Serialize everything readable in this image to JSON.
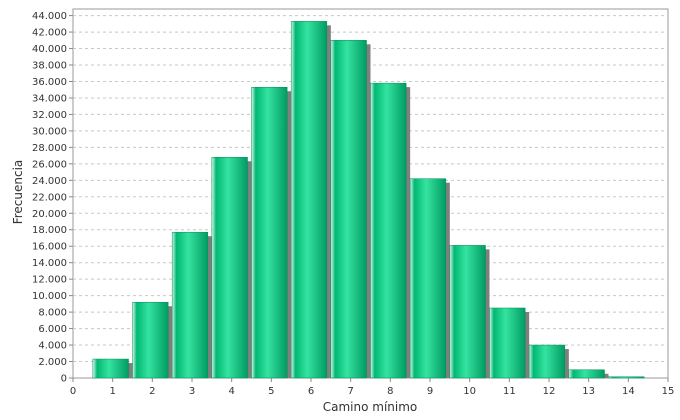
{
  "chart_data": {
    "type": "bar",
    "xlabel": "Camino mínimo",
    "ylabel": "Frecuencia",
    "xlim": [
      0,
      15
    ],
    "ylim": [
      0,
      44800
    ],
    "x_ticks": [
      "0",
      "1",
      "2",
      "3",
      "4",
      "5",
      "6",
      "7",
      "8",
      "9",
      "10",
      "11",
      "12",
      "13",
      "14",
      "15"
    ],
    "y_ticks": [
      "0",
      "2.000",
      "4.000",
      "6.000",
      "8.000",
      "10.000",
      "12.000",
      "14.000",
      "16.000",
      "18.000",
      "20.000",
      "22.000",
      "24.000",
      "26.000",
      "28.000",
      "30.000",
      "32.000",
      "34.000",
      "36.000",
      "38.000",
      "40.000",
      "42.000",
      "44.000"
    ],
    "grid": true,
    "bar_color": "#00b873",
    "bar_highlight": "#3ee6a4",
    "shadow_color": "#7f7f7f",
    "bars": [
      {
        "x": 1,
        "value": 2300
      },
      {
        "x": 2,
        "value": 9200
      },
      {
        "x": 3,
        "value": 17700
      },
      {
        "x": 4,
        "value": 26800
      },
      {
        "x": 5,
        "value": 35300
      },
      {
        "x": 6,
        "value": 43300
      },
      {
        "x": 7,
        "value": 41000
      },
      {
        "x": 8,
        "value": 35800
      },
      {
        "x": 9,
        "value": 24200
      },
      {
        "x": 10,
        "value": 16100
      },
      {
        "x": 11,
        "value": 8500
      },
      {
        "x": 12,
        "value": 4000
      },
      {
        "x": 13,
        "value": 1000
      },
      {
        "x": 14,
        "value": 150
      }
    ]
  }
}
